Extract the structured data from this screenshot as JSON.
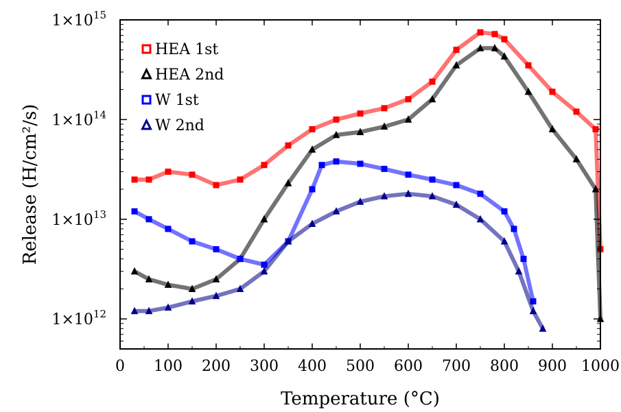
{
  "chart_data": {
    "type": "scatter",
    "xlabel": "Temperature (°C)",
    "ylabel": "Release (H/cm²/s)",
    "xlim": [
      0,
      1000
    ],
    "ylim": [
      500000000000.0,
      1000000000000000.0
    ],
    "y_scale": "log",
    "x_ticks": [
      "0",
      "100",
      "200",
      "300",
      "400",
      "500",
      "600",
      "700",
      "800",
      "900",
      "1000"
    ],
    "y_ticks": [
      {
        "base": "1×10",
        "exp": "12",
        "value": 1000000000000.0
      },
      {
        "base": "1×10",
        "exp": "13",
        "value": 10000000000000.0
      },
      {
        "base": "1×10",
        "exp": "14",
        "value": 100000000000000.0
      },
      {
        "base": "1×10",
        "exp": "15",
        "value": 1000000000000000.0
      }
    ],
    "legend_position": "top-left",
    "grid": false,
    "series": [
      {
        "name": "HEA 1st",
        "color": "#ff0000",
        "marker": "square",
        "x": [
          30,
          60,
          100,
          150,
          200,
          250,
          300,
          350,
          400,
          450,
          500,
          550,
          600,
          650,
          700,
          750,
          780,
          800,
          850,
          900,
          950,
          990,
          1000
        ],
        "y": [
          25000000000000.0,
          25000000000000.0,
          30000000000000.0,
          28000000000000.0,
          22000000000000.0,
          25000000000000.0,
          35000000000000.0,
          55000000000000.0,
          80000000000000.0,
          100000000000000.0,
          115000000000000.0,
          130000000000000.0,
          160000000000000.0,
          240000000000000.0,
          500000000000000.0,
          750000000000000.0,
          720000000000000.0,
          640000000000000.0,
          350000000000000.0,
          190000000000000.0,
          120000000000000.0,
          80000000000000.0,
          5000000000000.0
        ]
      },
      {
        "name": "HEA 2nd",
        "color": "#000000",
        "marker": "triangle",
        "x": [
          30,
          60,
          100,
          150,
          200,
          250,
          300,
          350,
          400,
          450,
          500,
          550,
          600,
          650,
          700,
          750,
          780,
          800,
          850,
          900,
          950,
          990,
          1000
        ],
        "y": [
          3000000000000.0,
          2500000000000.0,
          2200000000000.0,
          2000000000000.0,
          2500000000000.0,
          4000000000000.0,
          10000000000000.0,
          23000000000000.0,
          50000000000000.0,
          70000000000000.0,
          75000000000000.0,
          85000000000000.0,
          100000000000000.0,
          160000000000000.0,
          350000000000000.0,
          520000000000000.0,
          520000000000000.0,
          430000000000000.0,
          190000000000000.0,
          80000000000000.0,
          40000000000000.0,
          20000000000000.0,
          1000000000000.0
        ]
      },
      {
        "name": "W 1st",
        "color": "#0000ff",
        "marker": "square",
        "x": [
          30,
          60,
          100,
          150,
          200,
          250,
          300,
          350,
          400,
          420,
          450,
          500,
          550,
          600,
          650,
          700,
          750,
          800,
          820,
          840,
          860
        ],
        "y": [
          12000000000000.0,
          10000000000000.0,
          8000000000000.0,
          6000000000000.0,
          5000000000000.0,
          4000000000000.0,
          3500000000000.0,
          6000000000000.0,
          20000000000000.0,
          35000000000000.0,
          38000000000000.0,
          36000000000000.0,
          32000000000000.0,
          28000000000000.0,
          25000000000000.0,
          22000000000000.0,
          18000000000000.0,
          12000000000000.0,
          8000000000000.0,
          4000000000000.0,
          1500000000000.0
        ]
      },
      {
        "name": "W 2nd",
        "color": "#00008b",
        "marker": "triangle",
        "x": [
          30,
          60,
          100,
          150,
          200,
          250,
          300,
          350,
          400,
          450,
          500,
          550,
          600,
          650,
          700,
          750,
          800,
          830,
          860,
          880
        ],
        "y": [
          1200000000000.0,
          1200000000000.0,
          1300000000000.0,
          1500000000000.0,
          1700000000000.0,
          2000000000000.0,
          3000000000000.0,
          6000000000000.0,
          9000000000000.0,
          12000000000000.0,
          15000000000000.0,
          17000000000000.0,
          18000000000000.0,
          17000000000000.0,
          14000000000000.0,
          10000000000000.0,
          6000000000000.0,
          3000000000000.0,
          1200000000000.0,
          800000000000.0
        ]
      }
    ]
  }
}
